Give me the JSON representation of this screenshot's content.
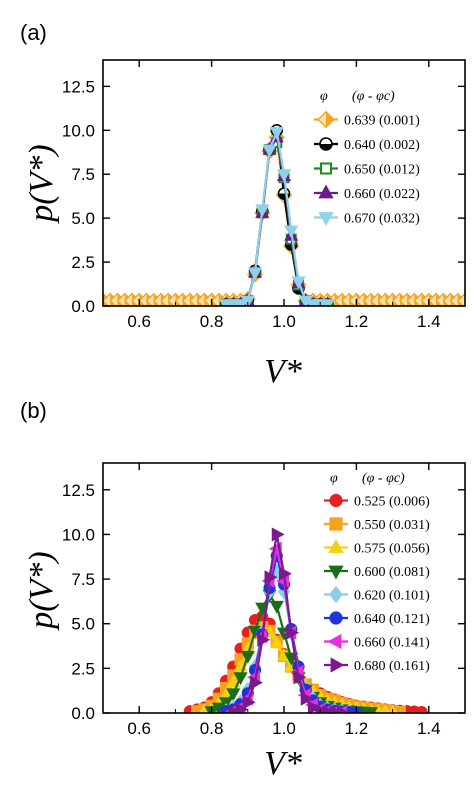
{
  "chart_data": [
    {
      "panel_label": "(a)",
      "type": "line",
      "xlabel": "V*",
      "ylabel": "p(V*)",
      "xlim": [
        0.5,
        1.5
      ],
      "ylim": [
        0,
        14.0
      ],
      "xticks": [
        "0.6",
        "0.8",
        "1.0",
        "1.2",
        "1.4"
      ],
      "yticks": [
        "0.0",
        "2.5",
        "5.0",
        "7.5",
        "10.0",
        "12.5"
      ],
      "legend_header": [
        "φ",
        "(φ - φc)"
      ],
      "legend_position": "right",
      "series": [
        {
          "name": "0.639 (0.001)",
          "color": "#f4a522",
          "marker": "diamond-half",
          "x": [
            0.5,
            0.52,
            0.54,
            0.56,
            0.58,
            0.6,
            0.62,
            0.64,
            0.66,
            0.68,
            0.7,
            0.72,
            0.74,
            0.76,
            0.78,
            0.8,
            0.82,
            0.84,
            0.86,
            0.88,
            0.9,
            0.92,
            0.94,
            0.96,
            0.98,
            1.0,
            1.02,
            1.04,
            1.06,
            1.08,
            1.1,
            1.12,
            1.14,
            1.16,
            1.18,
            1.2,
            1.22,
            1.24,
            1.26,
            1.28,
            1.3,
            1.32,
            1.34,
            1.36,
            1.38,
            1.4,
            1.42,
            1.44,
            1.46,
            1.48,
            1.5
          ],
          "y": [
            0.3,
            0.3,
            0.3,
            0.3,
            0.3,
            0.3,
            0.3,
            0.3,
            0.3,
            0.3,
            0.3,
            0.3,
            0.3,
            0.3,
            0.3,
            0.3,
            0.3,
            0.3,
            0.3,
            0.3,
            0.4,
            1.8,
            5.3,
            8.8,
            9.6,
            6.3,
            3.4,
            1.2,
            0.3,
            0.3,
            0.3,
            0.3,
            0.3,
            0.3,
            0.3,
            0.3,
            0.3,
            0.3,
            0.3,
            0.3,
            0.3,
            0.3,
            0.3,
            0.3,
            0.3,
            0.3,
            0.3,
            0.3,
            0.3,
            0.3,
            0.3
          ]
        },
        {
          "name": "0.640 (0.002)",
          "color": "#000000",
          "marker": "circle-half",
          "x": [
            0.84,
            0.86,
            0.88,
            0.9,
            0.92,
            0.94,
            0.96,
            0.98,
            1.0,
            1.02,
            1.04,
            1.06,
            1.08,
            1.1,
            1.12
          ],
          "y": [
            0.1,
            0.1,
            0.1,
            0.3,
            2.0,
            5.4,
            8.9,
            10.0,
            6.4,
            3.5,
            1.0,
            0.2,
            0.1,
            0.1,
            0.1
          ]
        },
        {
          "name": "0.650 (0.012)",
          "color": "#1f8a1f",
          "marker": "square-open",
          "x": [
            0.84,
            0.86,
            0.88,
            0.9,
            0.92,
            0.94,
            0.96,
            0.98,
            1.0,
            1.02,
            1.04,
            1.06,
            1.08,
            1.1,
            1.12
          ],
          "y": [
            0.1,
            0.1,
            0.1,
            0.3,
            1.9,
            5.3,
            8.9,
            9.3,
            7.3,
            3.8,
            1.2,
            0.3,
            0.1,
            0.1,
            0.1
          ]
        },
        {
          "name": "0.660 (0.022)",
          "color": "#6a1b8a",
          "marker": "triangle-up",
          "x": [
            0.84,
            0.86,
            0.88,
            0.9,
            0.92,
            0.94,
            0.96,
            0.98,
            1.0,
            1.02,
            1.04,
            1.06,
            1.08,
            1.1,
            1.12
          ],
          "y": [
            0.1,
            0.1,
            0.1,
            0.3,
            1.9,
            5.3,
            8.9,
            9.6,
            7.4,
            4.0,
            1.3,
            0.3,
            0.1,
            0.1,
            0.1
          ]
        },
        {
          "name": "0.670 (0.032)",
          "color": "#8fd0ea",
          "marker": "triangle-down",
          "x": [
            0.84,
            0.86,
            0.88,
            0.9,
            0.92,
            0.94,
            0.96,
            0.98,
            1.0,
            1.02,
            1.04,
            1.06,
            1.08,
            1.1,
            1.12
          ],
          "y": [
            0.1,
            0.1,
            0.1,
            0.3,
            1.9,
            5.5,
            8.9,
            9.9,
            7.5,
            4.3,
            1.4,
            0.3,
            0.1,
            0.1,
            0.1
          ]
        }
      ]
    },
    {
      "panel_label": "(b)",
      "type": "line",
      "xlabel": "V*",
      "ylabel": "p(V*)",
      "xlim": [
        0.5,
        1.5
      ],
      "ylim": [
        0,
        14.0
      ],
      "xticks": [
        "0.6",
        "0.8",
        "1.0",
        "1.2",
        "1.4"
      ],
      "yticks": [
        "0.0",
        "2.5",
        "5.0",
        "7.5",
        "10.0",
        "12.5"
      ],
      "legend_header": [
        "φ",
        "(φ - φc)"
      ],
      "legend_position": "right",
      "series": [
        {
          "name": "0.525 (0.006)",
          "color": "#e62020",
          "marker": "circle",
          "x": [
            0.74,
            0.76,
            0.78,
            0.8,
            0.82,
            0.84,
            0.86,
            0.88,
            0.9,
            0.92,
            0.94,
            0.96,
            0.98,
            1.0,
            1.02,
            1.04,
            1.06,
            1.08,
            1.1,
            1.12,
            1.14,
            1.16,
            1.18,
            1.2,
            1.22,
            1.24,
            1.26,
            1.28,
            1.3,
            1.32,
            1.34,
            1.36,
            1.38
          ],
          "y": [
            0.1,
            0.2,
            0.3,
            0.6,
            1.1,
            1.8,
            2.6,
            3.6,
            4.5,
            5.2,
            5.4,
            5.0,
            4.1,
            3.3,
            2.6,
            2.0,
            1.6,
            1.3,
            1.1,
            0.9,
            0.75,
            0.6,
            0.5,
            0.4,
            0.35,
            0.3,
            0.25,
            0.2,
            0.15,
            0.12,
            0.1,
            0.08,
            0.05
          ]
        },
        {
          "name": "0.550 (0.031)",
          "color": "#f7a21a",
          "marker": "square",
          "x": [
            0.76,
            0.78,
            0.8,
            0.82,
            0.84,
            0.86,
            0.88,
            0.9,
            0.92,
            0.94,
            0.96,
            0.98,
            1.0,
            1.02,
            1.04,
            1.06,
            1.08,
            1.1,
            1.12,
            1.14,
            1.16,
            1.18,
            1.2,
            1.22,
            1.24,
            1.26,
            1.28,
            1.3,
            1.32
          ],
          "y": [
            0.1,
            0.2,
            0.4,
            0.8,
            1.4,
            2.1,
            3.0,
            3.9,
            4.6,
            4.8,
            4.6,
            4.0,
            3.2,
            2.6,
            2.1,
            1.6,
            1.3,
            1.0,
            0.8,
            0.7,
            0.55,
            0.45,
            0.35,
            0.3,
            0.25,
            0.2,
            0.15,
            0.1,
            0.05
          ]
        },
        {
          "name": "0.575 (0.056)",
          "color": "#f2d20f",
          "marker": "triangle-up",
          "x": [
            0.78,
            0.8,
            0.82,
            0.84,
            0.86,
            0.88,
            0.9,
            0.92,
            0.94,
            0.96,
            0.98,
            1.0,
            1.02,
            1.04,
            1.06,
            1.08,
            1.1,
            1.12,
            1.14,
            1.16,
            1.18,
            1.2,
            1.22,
            1.24,
            1.26,
            1.28,
            1.3
          ],
          "y": [
            0.1,
            0.2,
            0.5,
            1.0,
            1.7,
            2.6,
            3.6,
            4.4,
            4.7,
            4.5,
            3.9,
            3.2,
            2.6,
            2.0,
            1.5,
            1.2,
            0.9,
            0.7,
            0.55,
            0.45,
            0.35,
            0.3,
            0.2,
            0.15,
            0.1,
            0.08,
            0.05
          ]
        },
        {
          "name": "0.600 (0.081)",
          "color": "#1a6e1a",
          "marker": "triangle-down",
          "x": [
            0.8,
            0.82,
            0.84,
            0.86,
            0.88,
            0.9,
            0.92,
            0.94,
            0.96,
            0.98,
            1.0,
            1.02,
            1.04,
            1.06,
            1.08,
            1.1,
            1.12,
            1.14,
            1.16,
            1.18,
            1.2,
            1.22,
            1.24
          ],
          "y": [
            0.1,
            0.3,
            0.6,
            1.1,
            2.0,
            3.2,
            4.6,
            5.9,
            6.6,
            6.0,
            4.5,
            3.1,
            2.0,
            1.3,
            0.9,
            0.6,
            0.4,
            0.3,
            0.2,
            0.15,
            0.1,
            0.08,
            0.05
          ]
        },
        {
          "name": "0.620 (0.101)",
          "color": "#8ecdea",
          "marker": "diamond",
          "x": [
            0.84,
            0.86,
            0.88,
            0.9,
            0.92,
            0.94,
            0.96,
            0.98,
            1.0,
            1.02,
            1.04,
            1.06,
            1.08,
            1.1,
            1.12,
            1.14,
            1.16,
            1.18,
            1.2
          ],
          "y": [
            0.1,
            0.3,
            0.6,
            1.3,
            2.6,
            4.5,
            6.8,
            7.9,
            6.8,
            4.5,
            2.6,
            1.4,
            0.8,
            0.4,
            0.25,
            0.15,
            0.1,
            0.08,
            0.05
          ]
        },
        {
          "name": "0.640 (0.121)",
          "color": "#1f35d6",
          "marker": "circle",
          "x": [
            0.84,
            0.86,
            0.88,
            0.9,
            0.92,
            0.94,
            0.96,
            0.98,
            1.0,
            1.02,
            1.04,
            1.06,
            1.08,
            1.1,
            1.12,
            1.14,
            1.16,
            1.18,
            1.2
          ],
          "y": [
            0.1,
            0.2,
            0.5,
            1.1,
            2.4,
            4.4,
            7.0,
            8.8,
            7.2,
            4.7,
            2.6,
            1.3,
            0.7,
            0.35,
            0.2,
            0.12,
            0.08,
            0.05,
            0.03
          ]
        },
        {
          "name": "0.660 (0.141)",
          "color": "#e82ee0",
          "marker": "triangle-left",
          "x": [
            0.86,
            0.88,
            0.9,
            0.92,
            0.94,
            0.96,
            0.98,
            1.0,
            1.02,
            1.04,
            1.06,
            1.08,
            1.1,
            1.12,
            1.14,
            1.16
          ],
          "y": [
            0.1,
            0.3,
            0.8,
            2.0,
            4.3,
            7.4,
            9.2,
            7.4,
            4.5,
            2.3,
            1.0,
            0.45,
            0.2,
            0.1,
            0.05,
            0.03
          ]
        },
        {
          "name": "0.680 (0.161)",
          "color": "#7a1a8c",
          "marker": "triangle-right",
          "x": [
            0.86,
            0.88,
            0.9,
            0.92,
            0.94,
            0.96,
            0.98,
            1.0,
            1.02,
            1.04,
            1.06,
            1.08,
            1.1,
            1.12,
            1.14,
            1.16
          ],
          "y": [
            0.05,
            0.2,
            0.6,
            1.7,
            4.1,
            7.6,
            10.0,
            7.8,
            4.5,
            2.0,
            0.8,
            0.3,
            0.12,
            0.06,
            0.03,
            0.02
          ]
        }
      ]
    }
  ]
}
